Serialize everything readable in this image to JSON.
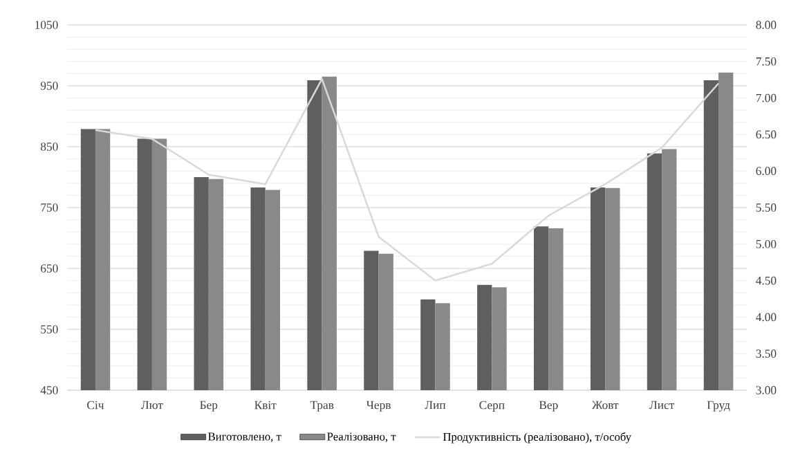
{
  "chart_data": {
    "type": "bar",
    "categories": [
      "Січ",
      "Лют",
      "Бер",
      "Квіт",
      "Трав",
      "Черв",
      "Лип",
      "Серп",
      "Вер",
      "Жовт",
      "Лист",
      "Груд"
    ],
    "series": [
      {
        "name": "Виготовлено, т",
        "color": "#5f5f5f",
        "values": [
          879,
          863,
          800,
          783,
          959,
          679,
          599,
          623,
          719,
          783,
          839,
          959
        ]
      },
      {
        "name": "Реалізовано, т",
        "color": "#898989",
        "values": [
          879,
          863,
          797,
          779,
          965,
          674,
          593,
          619,
          716,
          782,
          846,
          972
        ]
      },
      {
        "name": "Продуктивність (реалізовано), т/особу",
        "type": "line",
        "axis": "y2",
        "color": "#d9d9d9",
        "values": [
          6.56,
          6.44,
          5.95,
          5.82,
          7.26,
          5.1,
          4.5,
          4.73,
          5.39,
          5.82,
          6.32,
          7.2
        ]
      }
    ],
    "ylim": [
      450,
      1050
    ],
    "yticks": [
      450,
      550,
      650,
      750,
      850,
      950,
      1050
    ],
    "y2lim": [
      3,
      8
    ],
    "y2ticks": [
      {
        "value": 3,
        "label": "3.00"
      },
      {
        "value": 3.5,
        "label": "3.50"
      },
      {
        "value": 4,
        "label": "4.00"
      },
      {
        "value": 4.5,
        "label": "4.50"
      },
      {
        "value": 5,
        "label": "5.00"
      },
      {
        "value": 5.5,
        "label": "5.50"
      },
      {
        "value": 6,
        "label": "6.00"
      },
      {
        "value": 6.5,
        "label": "6.50"
      },
      {
        "value": 7,
        "label": "7.00"
      },
      {
        "value": 7.5,
        "label": "7.50"
      },
      {
        "value": 8,
        "label": "8.00"
      }
    ],
    "grid": "y",
    "legend": "bottom"
  }
}
